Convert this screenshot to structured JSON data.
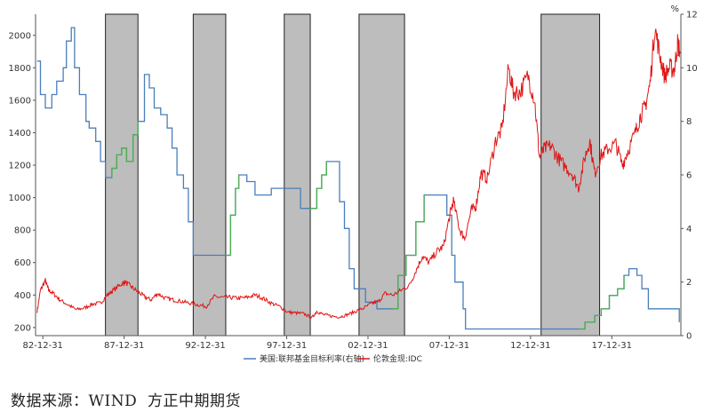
{
  "source_note": "数据来源：WIND  方正中期期货",
  "chart_data": {
    "type": "line",
    "title": "",
    "right_axis_unit": "%",
    "x_ticks": [
      "82-12-31",
      "87-12-31",
      "92-12-31",
      "97-12-31",
      "02-12-31",
      "07-12-31",
      "12-12-31",
      "17-12-31"
    ],
    "x_range": [
      1982.5,
      2022.2
    ],
    "y_left": {
      "ticks": [
        200,
        400,
        600,
        800,
        1000,
        1200,
        1400,
        1600,
        1800,
        2000
      ],
      "range": [
        150,
        2130
      ]
    },
    "y_right": {
      "ticks": [
        0,
        2,
        4,
        6,
        8,
        10,
        12
      ],
      "range": [
        0,
        12
      ]
    },
    "legend": [
      {
        "name": "美国:联邦基金目标利率(右轴)",
        "color": "#4a7ebb"
      },
      {
        "name": "伦敦金现:IDC",
        "color": "#e01515"
      }
    ],
    "shaded_periods": [
      [
        1986.8,
        1988.8
      ],
      [
        1992.2,
        1994.2
      ],
      [
        1997.8,
        1999.4
      ],
      [
        2002.4,
        2005.2
      ],
      [
        2013.6,
        2017.2
      ]
    ],
    "shade_color": "#bdbdbd",
    "hike_color": "#4caf50",
    "series": [
      {
        "name": "美国:联邦基金目标利率(右轴)",
        "axis": "right",
        "color": "#4a7ebb",
        "points": [
          [
            1982.6,
            10.25
          ],
          [
            1982.8,
            9.0
          ],
          [
            1983.1,
            8.5
          ],
          [
            1983.5,
            9.0
          ],
          [
            1983.8,
            9.5
          ],
          [
            1984.2,
            10.0
          ],
          [
            1984.4,
            11.0
          ],
          [
            1984.7,
            11.5
          ],
          [
            1984.9,
            10.0
          ],
          [
            1985.2,
            9.0
          ],
          [
            1985.6,
            8.0
          ],
          [
            1985.8,
            7.75
          ],
          [
            1986.2,
            7.25
          ],
          [
            1986.5,
            6.5
          ],
          [
            1986.8,
            5.9
          ],
          [
            1987.2,
            6.25
          ],
          [
            1987.5,
            6.75
          ],
          [
            1987.8,
            7.0
          ],
          [
            1988.1,
            6.5
          ],
          [
            1988.5,
            7.5
          ],
          [
            1988.8,
            8.0
          ],
          [
            1989.2,
            9.75
          ],
          [
            1989.5,
            9.25
          ],
          [
            1989.8,
            8.5
          ],
          [
            1990.2,
            8.25
          ],
          [
            1990.6,
            7.75
          ],
          [
            1990.9,
            7.0
          ],
          [
            1991.2,
            6.0
          ],
          [
            1991.6,
            5.5
          ],
          [
            1991.9,
            4.25
          ],
          [
            1992.2,
            3.0
          ],
          [
            1993.5,
            3.0
          ],
          [
            1994.2,
            3.0
          ],
          [
            1994.5,
            4.5
          ],
          [
            1994.8,
            5.5
          ],
          [
            1995.0,
            6.0
          ],
          [
            1995.5,
            5.75
          ],
          [
            1996.0,
            5.25
          ],
          [
            1997.0,
            5.5
          ],
          [
            1998.0,
            5.5
          ],
          [
            1998.8,
            4.75
          ],
          [
            1999.4,
            4.75
          ],
          [
            1999.8,
            5.5
          ],
          [
            2000.1,
            6.0
          ],
          [
            2000.4,
            6.5
          ],
          [
            2000.8,
            6.5
          ],
          [
            2001.2,
            5.0
          ],
          [
            2001.5,
            4.0
          ],
          [
            2001.8,
            2.5
          ],
          [
            2002.1,
            1.75
          ],
          [
            2002.8,
            1.25
          ],
          [
            2003.5,
            1.0
          ],
          [
            2004.4,
            1.0
          ],
          [
            2004.8,
            2.25
          ],
          [
            2005.3,
            3.0
          ],
          [
            2005.9,
            4.25
          ],
          [
            2006.4,
            5.25
          ],
          [
            2007.6,
            5.25
          ],
          [
            2007.8,
            4.5
          ],
          [
            2008.1,
            3.0
          ],
          [
            2008.3,
            2.0
          ],
          [
            2008.8,
            1.0
          ],
          [
            2008.95,
            0.25
          ],
          [
            2015.9,
            0.25
          ],
          [
            2016.3,
            0.5
          ],
          [
            2016.9,
            0.75
          ],
          [
            2017.3,
            1.0
          ],
          [
            2017.8,
            1.5
          ],
          [
            2018.3,
            1.75
          ],
          [
            2018.7,
            2.25
          ],
          [
            2019.0,
            2.5
          ],
          [
            2019.5,
            2.25
          ],
          [
            2019.8,
            1.75
          ],
          [
            2020.2,
            1.0
          ],
          [
            2022.1,
            0.5
          ]
        ]
      },
      {
        "name": "伦敦金现:IDC",
        "axis": "left",
        "color": "#e01515",
        "points": [
          [
            1982.6,
            300
          ],
          [
            1982.8,
            430
          ],
          [
            1983.1,
            490
          ],
          [
            1983.3,
            430
          ],
          [
            1983.6,
            410
          ],
          [
            1984.0,
            370
          ],
          [
            1984.5,
            340
          ],
          [
            1985.0,
            310
          ],
          [
            1985.5,
            320
          ],
          [
            1986.0,
            345
          ],
          [
            1986.5,
            350
          ],
          [
            1986.9,
            400
          ],
          [
            1987.3,
            430
          ],
          [
            1987.8,
            470
          ],
          [
            1988.0,
            480
          ],
          [
            1988.4,
            450
          ],
          [
            1988.8,
            420
          ],
          [
            1989.2,
            390
          ],
          [
            1989.6,
            370
          ],
          [
            1990.0,
            410
          ],
          [
            1990.5,
            380
          ],
          [
            1991.0,
            370
          ],
          [
            1991.5,
            360
          ],
          [
            1992.0,
            350
          ],
          [
            1992.5,
            340
          ],
          [
            1993.0,
            330
          ],
          [
            1993.5,
            390
          ],
          [
            1994.0,
            385
          ],
          [
            1994.5,
            385
          ],
          [
            1995.0,
            380
          ],
          [
            1995.5,
            385
          ],
          [
            1996.0,
            400
          ],
          [
            1996.5,
            380
          ],
          [
            1997.0,
            350
          ],
          [
            1997.5,
            330
          ],
          [
            1998.0,
            295
          ],
          [
            1998.5,
            290
          ],
          [
            1999.0,
            285
          ],
          [
            1999.5,
            260
          ],
          [
            1999.8,
            300
          ],
          [
            2000.2,
            280
          ],
          [
            2000.7,
            270
          ],
          [
            2001.2,
            265
          ],
          [
            2001.7,
            280
          ],
          [
            2002.2,
            300
          ],
          [
            2002.7,
            320
          ],
          [
            2003.2,
            350
          ],
          [
            2003.6,
            360
          ],
          [
            2004.0,
            410
          ],
          [
            2004.5,
            400
          ],
          [
            2005.0,
            430
          ],
          [
            2005.5,
            460
          ],
          [
            2005.9,
            550
          ],
          [
            2006.3,
            640
          ],
          [
            2006.7,
            600
          ],
          [
            2007.2,
            670
          ],
          [
            2007.6,
            700
          ],
          [
            2008.0,
            900
          ],
          [
            2008.2,
            980
          ],
          [
            2008.6,
            800
          ],
          [
            2008.9,
            750
          ],
          [
            2009.3,
            920
          ],
          [
            2009.6,
            950
          ],
          [
            2009.9,
            1150
          ],
          [
            2010.3,
            1120
          ],
          [
            2010.8,
            1350
          ],
          [
            2011.2,
            1420
          ],
          [
            2011.6,
            1800
          ],
          [
            2011.9,
            1650
          ],
          [
            2012.3,
            1650
          ],
          [
            2012.8,
            1750
          ],
          [
            2013.2,
            1600
          ],
          [
            2013.5,
            1250
          ],
          [
            2013.8,
            1300
          ],
          [
            2014.2,
            1320
          ],
          [
            2014.6,
            1250
          ],
          [
            2015.0,
            1200
          ],
          [
            2015.5,
            1150
          ],
          [
            2015.9,
            1060
          ],
          [
            2016.3,
            1250
          ],
          [
            2016.6,
            1350
          ],
          [
            2016.9,
            1150
          ],
          [
            2017.3,
            1260
          ],
          [
            2017.7,
            1300
          ],
          [
            2018.2,
            1330
          ],
          [
            2018.6,
            1200
          ],
          [
            2018.9,
            1280
          ],
          [
            2019.4,
            1400
          ],
          [
            2019.7,
            1500
          ],
          [
            2020.0,
            1560
          ],
          [
            2020.3,
            1700
          ],
          [
            2020.6,
            2050
          ],
          [
            2020.9,
            1880
          ],
          [
            2021.2,
            1750
          ],
          [
            2021.5,
            1800
          ],
          [
            2021.8,
            1790
          ],
          [
            2022.0,
            1950
          ],
          [
            2022.15,
            1900
          ]
        ]
      }
    ]
  }
}
